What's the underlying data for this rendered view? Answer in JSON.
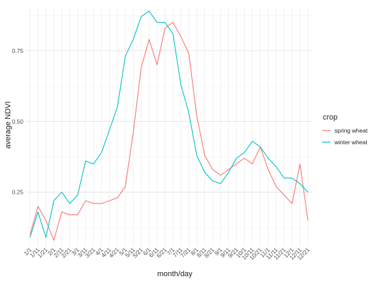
{
  "chart_data": {
    "type": "line",
    "xlabel": "month/day",
    "ylabel": "average NDVI",
    "categories": [
      "1/1",
      "1/11",
      "1/21",
      "2/1",
      "2/11",
      "2/21",
      "3/1",
      "3/11",
      "3/21",
      "4/1",
      "4/11",
      "4/21",
      "5/1",
      "5/11",
      "5/21",
      "6/1",
      "6/11",
      "6/21",
      "7/1",
      "7/11",
      "7/21",
      "8/1",
      "8/11",
      "8/21",
      "9/1",
      "9/11",
      "9/21",
      "10/1",
      "10/11",
      "10/21",
      "11/1",
      "11/11",
      "11/21",
      "12/1",
      "12/11",
      "12/21"
    ],
    "ylim": [
      0.06,
      0.9
    ],
    "yticks": [
      0.25,
      0.5,
      0.75
    ],
    "ytick_labels": [
      "0.25",
      "0.50",
      "0.75"
    ],
    "grid": true,
    "legend": {
      "title": "crop",
      "placement": "right"
    },
    "series": [
      {
        "name": "spring wheat",
        "color": "#F8766D",
        "values": [
          0.1,
          0.2,
          0.15,
          0.08,
          0.18,
          0.17,
          0.17,
          0.22,
          0.21,
          0.21,
          0.22,
          0.23,
          0.27,
          0.46,
          0.69,
          0.79,
          0.7,
          0.83,
          0.85,
          0.8,
          0.74,
          0.52,
          0.38,
          0.33,
          0.31,
          0.33,
          0.35,
          0.37,
          0.35,
          0.41,
          0.33,
          0.27,
          0.24,
          0.21,
          0.35,
          0.15
        ]
      },
      {
        "name": "winter wheat",
        "color": "#00BFC4",
        "values": [
          0.09,
          0.18,
          0.09,
          0.22,
          0.25,
          0.21,
          0.24,
          0.36,
          0.35,
          0.39,
          0.47,
          0.55,
          0.73,
          0.79,
          0.87,
          0.89,
          0.85,
          0.85,
          0.81,
          0.63,
          0.53,
          0.38,
          0.32,
          0.29,
          0.28,
          0.32,
          0.37,
          0.39,
          0.43,
          0.41,
          0.37,
          0.34,
          0.3,
          0.3,
          0.28,
          0.25
        ]
      }
    ]
  }
}
